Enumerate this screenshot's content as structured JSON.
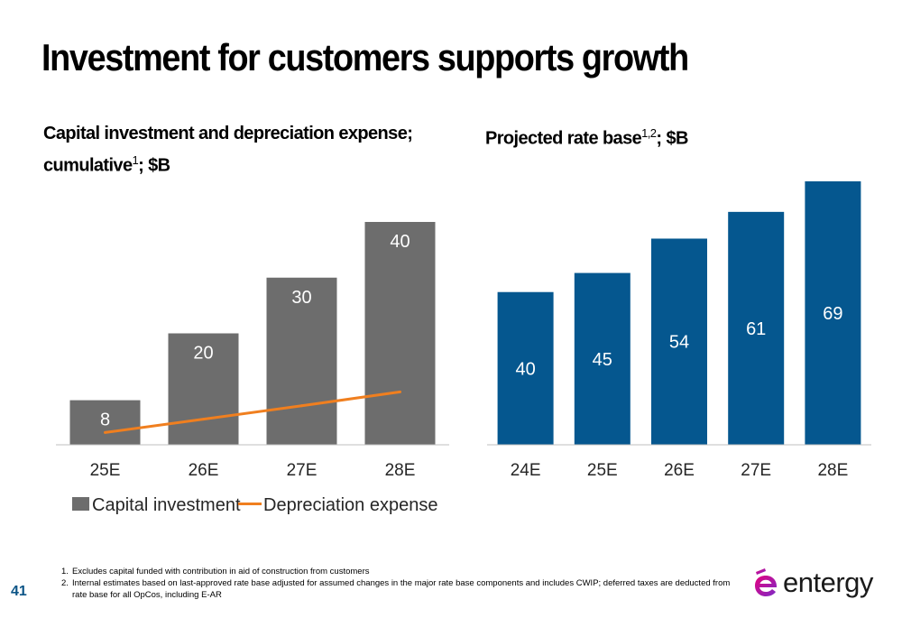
{
  "title": "Investment for customers supports growth",
  "left_subtitle": {
    "line1": "Capital investment and depreciation expense;",
    "line2_pre": "cumulative",
    "line2_sup": "1",
    "line2_post": "; $B"
  },
  "right_subtitle": {
    "pre": "Projected rate base",
    "sup": "1,2",
    "post": "; $B"
  },
  "colors": {
    "capital_bar": "#6d6d6d",
    "depreciation_line": "#f07f1f",
    "rate_base_bar": "#05578f",
    "baseline": "#bfbfbf",
    "page_number": "#0b5486",
    "logo_gradient_start": "#e6007e",
    "logo_gradient_end": "#7b2cc8"
  },
  "chart_data": [
    {
      "type": "bar",
      "categories": [
        "25E",
        "26E",
        "27E",
        "28E"
      ],
      "series": [
        {
          "name": "Capital investment",
          "type": "bar",
          "values": [
            8,
            20,
            30,
            40
          ],
          "labels": [
            "8",
            "20",
            "30",
            "40"
          ]
        },
        {
          "name": "Depreciation expense",
          "type": "line",
          "values": [
            2.2,
            4.6,
            7.0,
            9.5
          ]
        }
      ],
      "ylim": [
        0,
        40
      ],
      "legend": "bottom",
      "grid": false
    },
    {
      "type": "bar",
      "categories": [
        "24E",
        "25E",
        "26E",
        "27E",
        "28E"
      ],
      "series": [
        {
          "name": "Projected rate base",
          "values": [
            40,
            45,
            54,
            61,
            69
          ],
          "labels": [
            "40",
            "45",
            "54",
            "61",
            "69"
          ]
        }
      ],
      "ylim": [
        0,
        69
      ],
      "legend": "none",
      "grid": false
    }
  ],
  "footnotes": [
    {
      "num": "1.",
      "text": "Excludes capital funded with contribution in aid of construction from customers"
    },
    {
      "num": "2.",
      "text": "Internal estimates based on last-approved rate base adjusted for assumed changes in the major rate base components and includes CWIP; deferred taxes are deducted from rate base for all OpCos, including E-AR"
    }
  ],
  "page_number": "41",
  "logo": {
    "text": "entergy",
    "icon": "entergy-e-logo-icon"
  }
}
